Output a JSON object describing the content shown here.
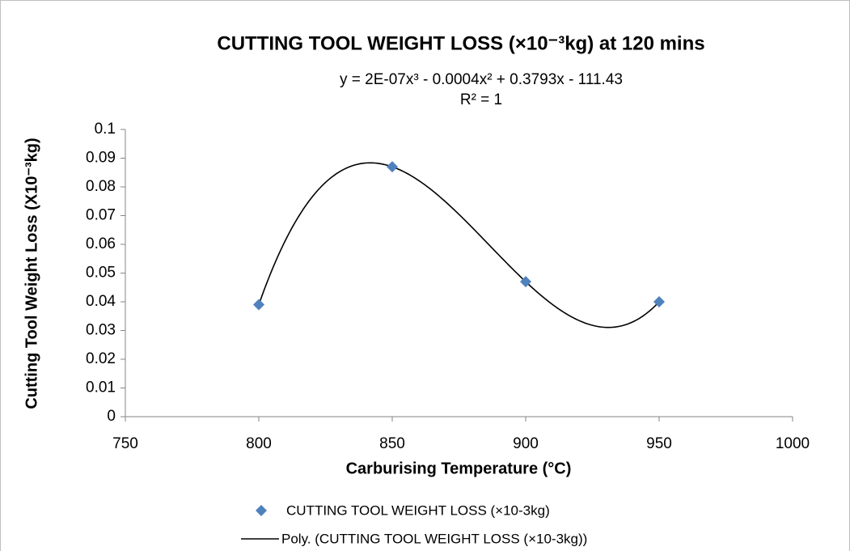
{
  "chart_data": {
    "type": "scatter",
    "title": "CUTTING TOOL WEIGHT LOSS (×10⁻³kg) at 120 mins",
    "annotations": [
      "y = 2E-07x³ - 0.0004x² + 0.3793x - 111.43",
      "R² = 1"
    ],
    "xlabel": "Carburising Temperature  (°C)",
    "ylabel": "Cutting Tool Weight Loss (X10⁻³kg)",
    "x": [
      800,
      850,
      900,
      950
    ],
    "series": [
      {
        "name": "CUTTING TOOL WEIGHT LOSS (×10-3kg)",
        "color": "#4f81bd",
        "values": [
          0.039,
          0.087,
          0.047,
          0.04
        ]
      }
    ],
    "trendline": {
      "name": "Poly. (CUTTING TOOL WEIGHT LOSS (×10-3kg))",
      "color": "#000000",
      "order": 3
    },
    "xlim": [
      750,
      1000
    ],
    "xticks": [
      750,
      800,
      850,
      900,
      950,
      1000
    ],
    "ylim": [
      0,
      0.1
    ],
    "yticks": [
      0,
      0.01,
      0.02,
      0.03,
      0.04,
      0.05,
      0.06,
      0.07,
      0.08,
      0.09,
      0.1
    ],
    "legend": "bottom"
  }
}
